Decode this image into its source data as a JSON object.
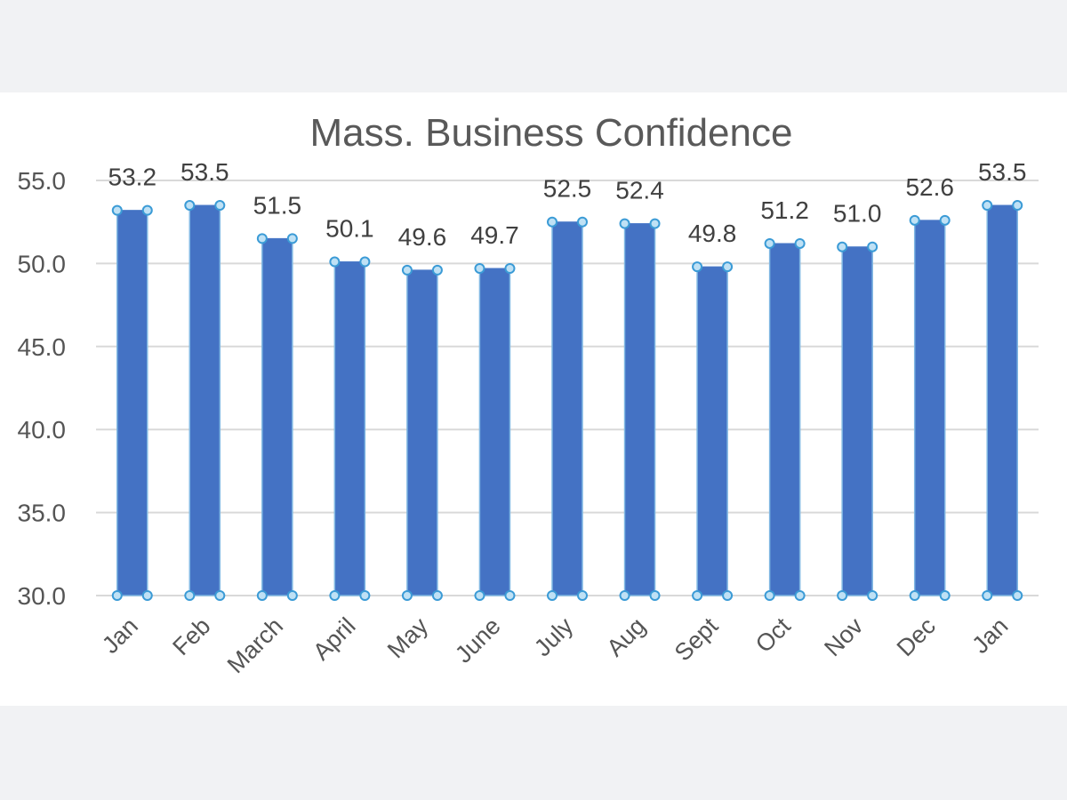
{
  "chart_data": {
    "type": "bar",
    "title": "Mass. Business Confidence",
    "xlabel": "",
    "ylabel": "",
    "ylim": [
      30,
      55
    ],
    "yticks": [
      "55.0",
      "50.0",
      "45.0",
      "40.0",
      "35.0",
      "30.0"
    ],
    "grid": true,
    "legend": "none",
    "categories": [
      "Jan",
      "Feb",
      "March",
      "April",
      "May",
      "June",
      "July",
      "Aug",
      "Sept",
      "Oct",
      "Nov",
      "Dec",
      "Jan"
    ],
    "values": [
      53.2,
      53.5,
      51.5,
      50.1,
      49.6,
      49.7,
      52.5,
      52.4,
      49.8,
      51.2,
      51.0,
      52.6,
      53.5
    ],
    "data_labels": [
      "53.2",
      "53.5",
      "51.5",
      "50.1",
      "49.6",
      "49.7",
      "52.5",
      "52.4",
      "49.8",
      "51.2",
      "51.0",
      "52.6",
      "53.5"
    ],
    "bar_color": "#4472c4"
  }
}
